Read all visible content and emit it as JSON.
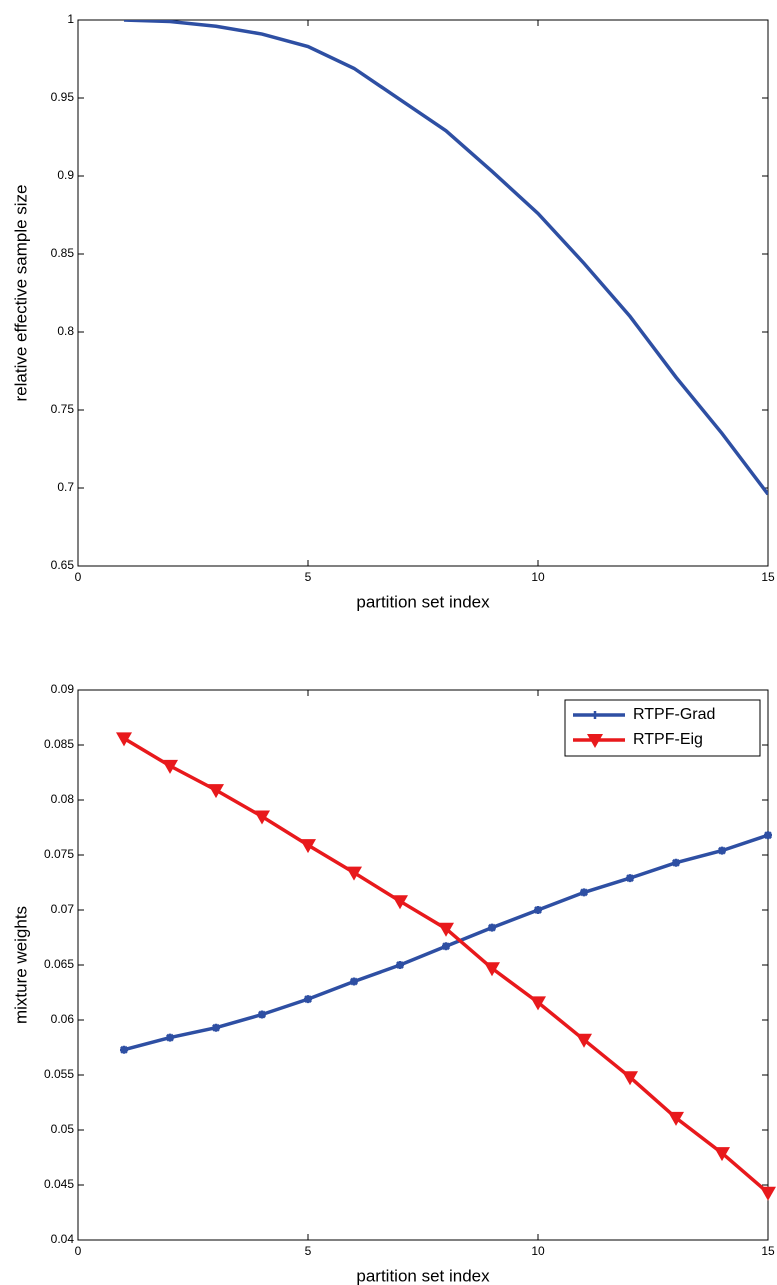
{
  "chart_data": [
    {
      "type": "line",
      "x_label": "partition set index",
      "y_label": "relative effective sample size",
      "x": [
        1,
        2,
        3,
        4,
        5,
        6,
        7,
        8,
        9,
        10,
        11,
        12,
        13,
        14,
        15
      ],
      "series": [
        {
          "color": "#2e4fa3",
          "values": [
            1.0,
            0.999,
            0.996,
            0.991,
            0.983,
            0.969,
            0.949,
            0.929,
            0.903,
            0.876,
            0.844,
            0.81,
            0.771,
            0.735,
            0.696
          ]
        }
      ],
      "xlim": [
        0,
        15
      ],
      "xticks": [
        0,
        5,
        10,
        15
      ],
      "ylim": [
        0.65,
        1
      ],
      "yticks": [
        0.65,
        0.7,
        0.75,
        0.8,
        0.85,
        0.9,
        0.95,
        1
      ]
    },
    {
      "type": "line",
      "x_label": "partition set index",
      "y_label": "mixture weights",
      "x": [
        1,
        2,
        3,
        4,
        5,
        6,
        7,
        8,
        9,
        10,
        11,
        12,
        13,
        14,
        15
      ],
      "series": [
        {
          "name": "RTPF-Grad",
          "color": "#2e4fa3",
          "marker": "star",
          "values": [
            0.0573,
            0.0584,
            0.0593,
            0.0605,
            0.0619,
            0.0635,
            0.065,
            0.0667,
            0.0684,
            0.07,
            0.0716,
            0.0729,
            0.0743,
            0.0754,
            0.0768
          ]
        },
        {
          "name": "RTPF-Eig",
          "color": "#e8191c",
          "marker": "triangle-down",
          "values": [
            0.0856,
            0.0831,
            0.0809,
            0.0785,
            0.0759,
            0.0734,
            0.0708,
            0.0683,
            0.0647,
            0.0616,
            0.0582,
            0.0548,
            0.0511,
            0.0479,
            0.0443
          ]
        }
      ],
      "xlim": [
        0,
        15
      ],
      "xticks": [
        0,
        5,
        10,
        15
      ],
      "ylim": [
        0.04,
        0.09
      ],
      "yticks": [
        0.04,
        0.045,
        0.05,
        0.055,
        0.06,
        0.065,
        0.07,
        0.075,
        0.08,
        0.085,
        0.09
      ],
      "legend": "northeast"
    }
  ]
}
